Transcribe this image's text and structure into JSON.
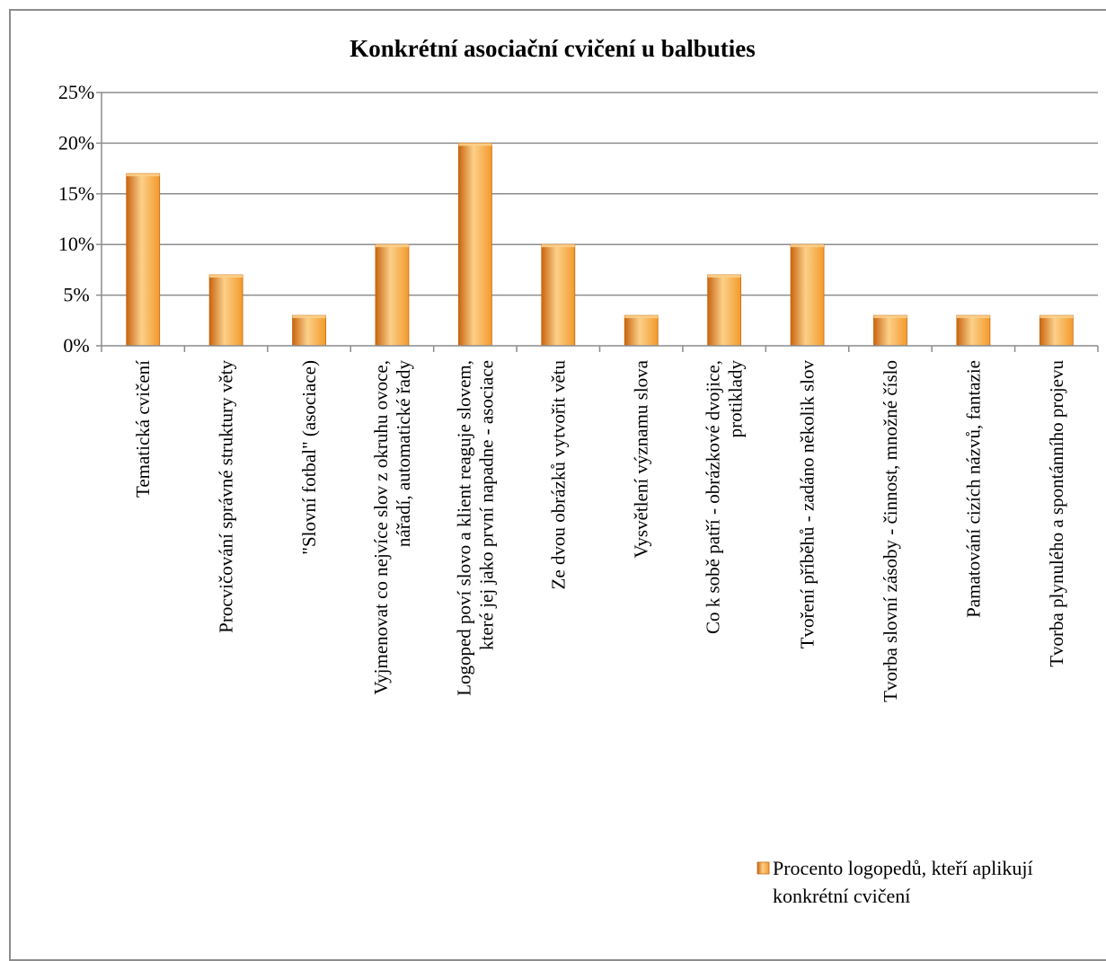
{
  "chart_data": {
    "type": "bar",
    "title": "Konkrétní asociační cvičení u balbuties",
    "xlabel": "",
    "ylabel": "",
    "ylim": [
      0,
      25
    ],
    "y_ticks": [
      "0%",
      "5%",
      "10%",
      "15%",
      "20%",
      "25%"
    ],
    "grid": true,
    "legend_position": "bottom-right",
    "categories": [
      [
        "Tematická cvičení"
      ],
      [
        "Procvičování správné struktury věty"
      ],
      [
        "\"Slovní fotbal\" (asociace)"
      ],
      [
        "Vyjmenovat co nejvíce slov z okruhu ovoce,",
        "nářadí, automatické řady"
      ],
      [
        "Logoped poví slovo a klient reaguje slovem,",
        "které jej jako první napadne - asociace"
      ],
      [
        "Ze dvou obrázků vytvořit větu"
      ],
      [
        "Vysvětlení významu slova"
      ],
      [
        "Co k sobě patří - obrázkové dvojice,",
        "protiklady"
      ],
      [
        "Tvoření příběhů - zadáno několik slov"
      ],
      [
        "Tvorba slovní zásoby - činnost, množné číslo"
      ],
      [
        "Pamatování cizích názvů, fantazie"
      ],
      [
        "Tvorba plynulého a spontánního projevu"
      ]
    ],
    "series": [
      {
        "name": [
          "Procento logopedů, kteří aplikují",
          "konkrétní cvičení"
        ],
        "values": [
          17,
          7,
          3,
          10,
          20,
          10,
          3,
          7,
          10,
          3,
          3,
          3
        ]
      }
    ],
    "colors": {
      "bar_light": "#fcd08a",
      "bar_mid": "#f39a2b",
      "bar_dark": "#c9650f",
      "grid": "#8c8c8c",
      "axis": "#8c8c8c",
      "frame": "#8c8c8c"
    }
  }
}
